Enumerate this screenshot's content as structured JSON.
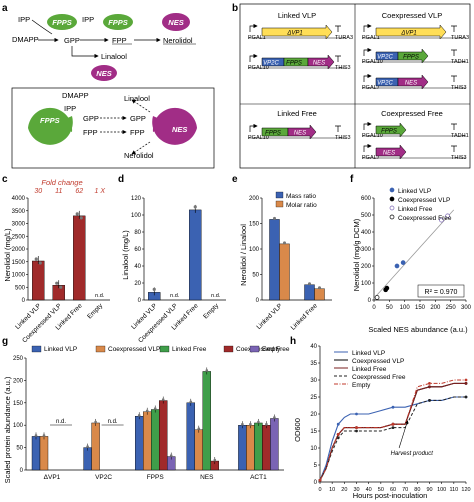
{
  "panel_labels": {
    "a": "a",
    "b": "b",
    "c": "c",
    "d": "d",
    "e": "e",
    "f": "f",
    "g": "g",
    "h": "h"
  },
  "colors": {
    "fpps": "#5aa83a",
    "nes": "#a12d86",
    "blue": "#3b62b2",
    "orange": "#d9894a",
    "green": "#3f9e4a",
    "red": "#a02a2a",
    "purple": "#7a64b4",
    "vp1": "#ffde57",
    "vp2c": "#3b62b2",
    "grey": "#8a8a8a"
  },
  "panel_a": {
    "ipp": "IPP",
    "dmapp": "DMAPP",
    "gpp": "GPP",
    "fpp": "FPP",
    "nerolidol": "Nerolidol",
    "linalool": "Linalool",
    "fpps": "FPPS",
    "nes": "NES",
    "nes2": "NES",
    "b_dmapp": "DMAPP",
    "b_ipp": "IPP",
    "b_gpp_left": "GPP",
    "b_fpp_left": "FPP",
    "b_gpp_right": "GPP",
    "b_fpp_right": "FPP",
    "b_linalool": "Linalool",
    "b_nerolidol": "Nerolidol",
    "b_fpps": "FPPS",
    "b_nes": "NES"
  },
  "panel_b": {
    "linked_vlp": "Linked VLP",
    "coexpressed_vlp": "Coexpressed VLP",
    "linked_free": "Linked Free",
    "coexpressed_free": "Coexpressed Free",
    "dvp1": "ΔVP1",
    "vp2c": "VP2C",
    "fpps": "FPPS",
    "nes": "NES",
    "pgal1": "PGAL1",
    "pgal10": "PGAL10",
    "pgal7": "PGAL7",
    "tura3": "TURA3",
    "this3": "THIS3",
    "tadh1": "TADH1"
  },
  "panel_c": {
    "ylabel": "Nerolidol (mg/L)",
    "fold_title": "Fold change",
    "fold": [
      "30",
      "11",
      "62",
      "1 X"
    ],
    "nd": "n.d."
  },
  "panel_d": {
    "ylabel": "Linalool (mg/L)",
    "nd": "n.d."
  },
  "panel_e": {
    "ylabel": "Nerolidol / Linalool",
    "legend": [
      "Mass ratio",
      "Molar ratio"
    ]
  },
  "panel_f": {
    "ylabel": "Nerolidol (mg/g DCM)",
    "xlabel": "Scaled NES abundance (a.u.)",
    "legend": [
      "Linked VLP",
      "Coexpressed VLP",
      "Linked Free",
      "Coexpressed Free"
    ],
    "r2": "R² = 0.970"
  },
  "panel_g": {
    "ylabel": "Scaled protein abundance (a.u.)",
    "legend": [
      "Linked VLP",
      "Coexpressed VLP",
      "Linked Free",
      "Coexpressed Free",
      "Empty"
    ],
    "nd": "n.d."
  },
  "panel_h": {
    "ylabel": "OD600",
    "xlabel": "Hours post-inoculation",
    "legend": [
      "Linked VLP",
      "Coexpressed VLP",
      "Linked Free",
      "Coexpressed Free",
      "Empty"
    ],
    "harvest": "Harvest product"
  },
  "chart_data": [
    {
      "type": "bar",
      "panel": "c",
      "categories": [
        "Linked VLP",
        "Coexpressed VLP",
        "Linked Free",
        "Empty"
      ],
      "values": [
        1530,
        580,
        3300,
        0
      ],
      "ylim": [
        0,
        4000
      ],
      "yticks": [
        0,
        500,
        1000,
        1500,
        2000,
        2500,
        3000,
        3500,
        4000
      ],
      "annotations": [
        "Fold change",
        "30",
        "11",
        "62",
        "1 X",
        "n.d."
      ],
      "ylabel": "Nerolidol (mg/L)"
    },
    {
      "type": "bar",
      "panel": "d",
      "categories": [
        "Linked VLP",
        "Coexpressed VLP",
        "Linked Free",
        "Empty"
      ],
      "values": [
        9,
        0,
        106,
        0
      ],
      "ylim": [
        0,
        120
      ],
      "yticks": [
        0,
        20,
        40,
        60,
        80,
        100,
        120
      ],
      "annotations": [
        "n.d.",
        "n.d.",
        "n.d."
      ],
      "ylabel": "Linalool (mg/L)"
    },
    {
      "type": "bar",
      "panel": "e",
      "categories": [
        "Linked VLP",
        "Linked Free"
      ],
      "series": [
        {
          "name": "Mass ratio",
          "values": [
            158,
            30
          ]
        },
        {
          "name": "Molar ratio",
          "values": [
            110,
            22
          ]
        }
      ],
      "ylim": [
        0,
        200
      ],
      "yticks": [
        0,
        50,
        100,
        150,
        200
      ],
      "ylabel": "Nerolidol / Linalool"
    },
    {
      "type": "scatter",
      "panel": "f",
      "series": [
        {
          "name": "Linked VLP",
          "points": [
            [
              75,
              200
            ],
            [
              95,
              220
            ]
          ]
        },
        {
          "name": "Coexpressed VLP",
          "points": [
            [
              38,
              60
            ],
            [
              42,
              70
            ]
          ]
        },
        {
          "name": "Linked Free",
          "points": [
            [
              220,
              470
            ],
            [
              240,
              495
            ]
          ]
        },
        {
          "name": "Coexpressed Free",
          "points": [
            [
              10,
              15
            ]
          ]
        }
      ],
      "xlim": [
        0,
        300
      ],
      "xticks": [
        0,
        50,
        100,
        150,
        200,
        250,
        300
      ],
      "ylim": [
        0,
        600
      ],
      "yticks": [
        0,
        100,
        200,
        300,
        400,
        500,
        600
      ],
      "fit": [
        [
          0,
          10
        ],
        [
          260,
          530
        ]
      ],
      "ylabel": "Nerolidol (mg/g DCM)",
      "xlabel": "Scaled NES abundance (a.u.)"
    },
    {
      "type": "bar",
      "panel": "g",
      "categories": [
        "ΔVP1",
        "VP2C",
        "FPPS",
        "NES",
        "ACT1"
      ],
      "series": [
        {
          "name": "Linked VLP",
          "values": [
            75,
            50,
            120,
            150,
            100
          ]
        },
        {
          "name": "Coexpressed VLP",
          "values": [
            75,
            105,
            130,
            90,
            100
          ]
        },
        {
          "name": "Linked Free",
          "values": [
            0,
            0,
            135,
            220,
            105
          ]
        },
        {
          "name": "Coexpressed Free",
          "values": [
            0,
            0,
            155,
            20,
            100
          ]
        },
        {
          "name": "Empty",
          "values": [
            0,
            0,
            30,
            0,
            115
          ]
        }
      ],
      "ylim": [
        0,
        250
      ],
      "yticks": [
        0,
        50,
        100,
        150,
        200,
        250
      ],
      "annotations": [
        "n.d.",
        "n.d."
      ],
      "ylabel": "Scaled protein abundance (a.u.)"
    },
    {
      "type": "line",
      "panel": "h",
      "x": [
        0,
        5,
        10,
        15,
        20,
        25,
        30,
        40,
        50,
        60,
        70,
        80,
        90,
        100,
        110,
        120
      ],
      "series": [
        {
          "name": "Linked VLP",
          "values": [
            0.5,
            5,
            12,
            17,
            19,
            20,
            20,
            20,
            21,
            22,
            22,
            23,
            24,
            24,
            25,
            25
          ]
        },
        {
          "name": "Coexpressed VLP",
          "values": [
            0.5,
            4,
            10,
            14,
            16,
            16,
            16,
            16,
            16,
            17,
            17,
            27,
            28,
            28,
            29,
            29
          ]
        },
        {
          "name": "Linked Free",
          "values": [
            0.5,
            4,
            10,
            14,
            16,
            16,
            16,
            16,
            16,
            17,
            17,
            27,
            28,
            28,
            29,
            29
          ]
        },
        {
          "name": "Coexpressed Free",
          "values": [
            0.5,
            4,
            9,
            13,
            15,
            15,
            15,
            15,
            15,
            16,
            16,
            23,
            24,
            24,
            25,
            25
          ]
        },
        {
          "name": "Empty",
          "values": [
            0.5,
            4,
            10,
            14,
            16,
            16,
            16,
            16,
            16,
            17,
            17,
            28,
            29,
            29,
            30,
            30
          ]
        }
      ],
      "xlim": [
        0,
        120
      ],
      "xticks": [
        0,
        10,
        20,
        30,
        40,
        50,
        60,
        70,
        80,
        90,
        100,
        110,
        120
      ],
      "ylim": [
        0,
        40
      ],
      "yticks": [
        0,
        5,
        10,
        15,
        20,
        25,
        30,
        35,
        40
      ],
      "ylabel": "OD600",
      "xlabel": "Hours post-inoculation",
      "annotations": [
        "Harvest product"
      ]
    }
  ]
}
